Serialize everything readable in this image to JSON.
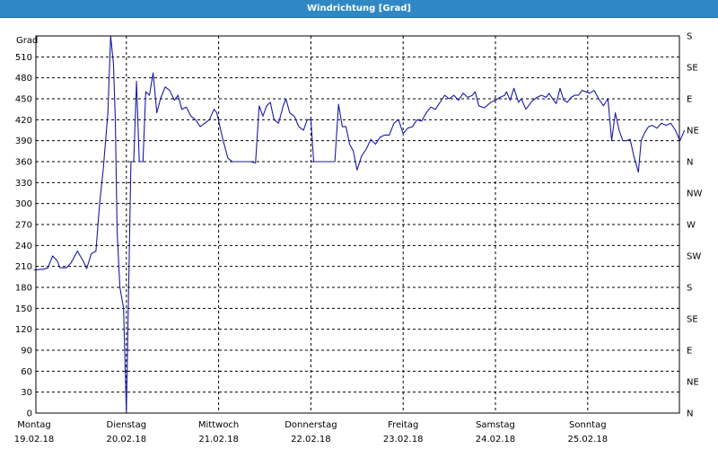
{
  "window": {
    "title": "Windrichtung [Grad]"
  },
  "chart_data": {
    "type": "line",
    "title": "Windrichtung [Grad]",
    "ylabel": "Grad",
    "ylim": [
      0,
      540
    ],
    "yticks": [
      0,
      30,
      60,
      90,
      120,
      150,
      180,
      210,
      240,
      270,
      300,
      330,
      360,
      390,
      420,
      450,
      480,
      510
    ],
    "right_axis_labels": [
      "N",
      "NE",
      "E",
      "SE",
      "S",
      "SW",
      "W",
      "NW",
      "N",
      "NE",
      "E",
      "SE",
      "S"
    ],
    "right_axis_values": [
      0,
      45,
      90,
      135,
      180,
      225,
      270,
      315,
      360,
      405,
      450,
      495,
      540
    ],
    "x_days": [
      {
        "day": "Montag",
        "date": "19.02.18"
      },
      {
        "day": "Dienstag",
        "date": "20.02.18"
      },
      {
        "day": "Mittwoch",
        "date": "21.02.18"
      },
      {
        "day": "Donnerstag",
        "date": "22.02.18"
      },
      {
        "day": "Freitag",
        "date": "23.02.18"
      },
      {
        "day": "Samstag",
        "date": "24.02.18"
      },
      {
        "day": "Sonntag",
        "date": "25.02.18"
      }
    ],
    "xlim_days": [
      0,
      7.1
    ],
    "grid": true,
    "series": [
      {
        "color": "#1a1aa6",
        "points": [
          [
            0.0,
            205
          ],
          [
            0.1,
            206
          ],
          [
            0.15,
            208
          ],
          [
            0.2,
            225
          ],
          [
            0.25,
            218
          ],
          [
            0.28,
            208
          ],
          [
            0.35,
            208
          ],
          [
            0.4,
            215
          ],
          [
            0.47,
            232
          ],
          [
            0.53,
            218
          ],
          [
            0.57,
            207
          ],
          [
            0.62,
            228
          ],
          [
            0.67,
            232
          ],
          [
            0.71,
            300
          ],
          [
            0.75,
            350
          ],
          [
            0.8,
            430
          ],
          [
            0.83,
            540
          ],
          [
            0.86,
            500
          ],
          [
            0.88,
            420
          ],
          [
            0.9,
            260
          ],
          [
            0.93,
            180
          ],
          [
            0.97,
            150
          ],
          [
            1.0,
            0
          ],
          [
            1.05,
            360
          ],
          [
            1.08,
            360
          ],
          [
            1.11,
            475
          ],
          [
            1.14,
            360
          ],
          [
            1.18,
            360
          ],
          [
            1.21,
            460
          ],
          [
            1.25,
            455
          ],
          [
            1.29,
            487
          ],
          [
            1.33,
            430
          ],
          [
            1.37,
            450
          ],
          [
            1.42,
            467
          ],
          [
            1.47,
            462
          ],
          [
            1.52,
            448
          ],
          [
            1.56,
            455
          ],
          [
            1.6,
            435
          ],
          [
            1.65,
            438
          ],
          [
            1.7,
            425
          ],
          [
            1.75,
            420
          ],
          [
            1.8,
            410
          ],
          [
            1.85,
            415
          ],
          [
            1.9,
            420
          ],
          [
            1.95,
            435
          ],
          [
            1.98,
            430
          ],
          [
            2.05,
            390
          ],
          [
            2.1,
            365
          ],
          [
            2.15,
            360
          ],
          [
            2.2,
            360
          ],
          [
            2.28,
            360
          ],
          [
            2.35,
            360
          ],
          [
            2.4,
            358
          ],
          [
            2.44,
            440
          ],
          [
            2.48,
            425
          ],
          [
            2.52,
            440
          ],
          [
            2.56,
            445
          ],
          [
            2.6,
            420
          ],
          [
            2.65,
            415
          ],
          [
            2.7,
            440
          ],
          [
            2.73,
            450
          ],
          [
            2.77,
            430
          ],
          [
            2.82,
            425
          ],
          [
            2.87,
            410
          ],
          [
            2.92,
            405
          ],
          [
            2.96,
            420
          ],
          [
            3.0,
            420
          ],
          [
            3.03,
            360
          ],
          [
            3.08,
            360
          ],
          [
            3.15,
            360
          ],
          [
            3.22,
            360
          ],
          [
            3.26,
            360
          ],
          [
            3.3,
            442
          ],
          [
            3.34,
            410
          ],
          [
            3.38,
            410
          ],
          [
            3.42,
            385
          ],
          [
            3.46,
            375
          ],
          [
            3.5,
            348
          ],
          [
            3.55,
            368
          ],
          [
            3.6,
            378
          ],
          [
            3.65,
            392
          ],
          [
            3.7,
            385
          ],
          [
            3.75,
            395
          ],
          [
            3.8,
            398
          ],
          [
            3.85,
            398
          ],
          [
            3.9,
            415
          ],
          [
            3.95,
            420
          ],
          [
            4.0,
            400
          ],
          [
            4.05,
            408
          ],
          [
            4.1,
            410
          ],
          [
            4.15,
            420
          ],
          [
            4.2,
            418
          ],
          [
            4.25,
            430
          ],
          [
            4.3,
            438
          ],
          [
            4.35,
            435
          ],
          [
            4.4,
            445
          ],
          [
            4.45,
            455
          ],
          [
            4.5,
            450
          ],
          [
            4.55,
            455
          ],
          [
            4.6,
            448
          ],
          [
            4.65,
            458
          ],
          [
            4.7,
            452
          ],
          [
            4.75,
            455
          ],
          [
            4.78,
            460
          ],
          [
            4.82,
            440
          ],
          [
            4.88,
            437
          ],
          [
            4.95,
            445
          ],
          [
            5.0,
            448
          ],
          [
            5.05,
            452
          ],
          [
            5.1,
            455
          ],
          [
            5.12,
            460
          ],
          [
            5.16,
            448
          ],
          [
            5.2,
            465
          ],
          [
            5.25,
            445
          ],
          [
            5.28,
            450
          ],
          [
            5.33,
            435
          ],
          [
            5.4,
            447
          ],
          [
            5.45,
            452
          ],
          [
            5.5,
            455
          ],
          [
            5.55,
            452
          ],
          [
            5.58,
            458
          ],
          [
            5.62,
            450
          ],
          [
            5.66,
            443
          ],
          [
            5.7,
            465
          ],
          [
            5.74,
            448
          ],
          [
            5.78,
            445
          ],
          [
            5.82,
            452
          ],
          [
            5.86,
            455
          ],
          [
            5.9,
            455
          ],
          [
            5.94,
            462
          ],
          [
            5.98,
            460
          ],
          [
            6.02,
            458
          ],
          [
            6.07,
            462
          ],
          [
            6.12,
            450
          ],
          [
            6.17,
            440
          ],
          [
            6.22,
            450
          ],
          [
            6.26,
            390
          ],
          [
            6.3,
            430
          ],
          [
            6.34,
            405
          ],
          [
            6.38,
            390
          ],
          [
            6.42,
            390
          ],
          [
            6.46,
            392
          ],
          [
            6.5,
            368
          ],
          [
            6.55,
            345
          ],
          [
            6.58,
            390
          ],
          [
            6.62,
            402
          ],
          [
            6.66,
            410
          ],
          [
            6.7,
            412
          ],
          [
            6.75,
            408
          ],
          [
            6.8,
            415
          ],
          [
            6.85,
            412
          ],
          [
            6.9,
            415
          ],
          [
            6.95,
            405
          ],
          [
            7.0,
            390
          ],
          [
            7.05,
            405
          ]
        ]
      }
    ]
  }
}
